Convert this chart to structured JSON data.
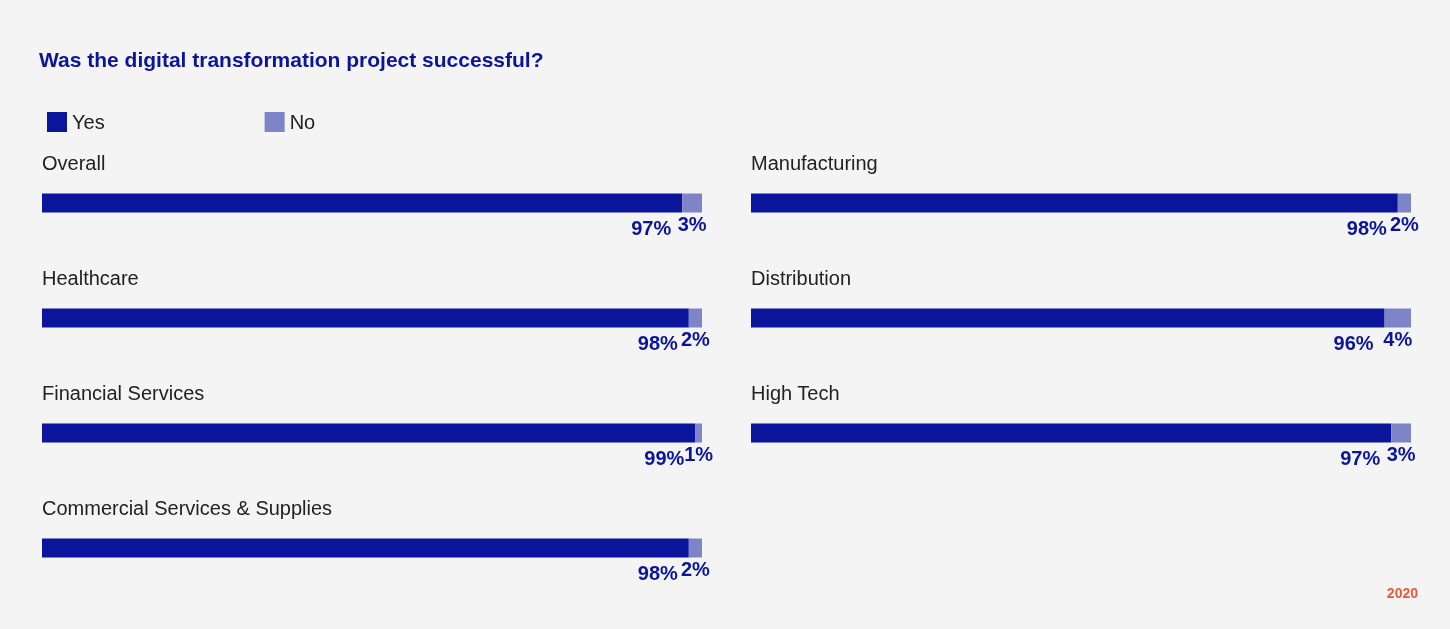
{
  "chart_data": [
    {
      "type": "bar",
      "orientation": "horizontal",
      "stacked": true,
      "title": "Was the digital transformation project successful?",
      "categories": [
        "Overall",
        "Healthcare",
        "Financial Services",
        "Commercial Services & Supplies"
      ],
      "series": [
        {
          "name": "Yes",
          "color": "#0a159c",
          "values": [
            97,
            98,
            99,
            98
          ],
          "value_labels": [
            "97%",
            "98%",
            "99%",
            "98%"
          ]
        },
        {
          "name": "No",
          "color": "#7e84c8",
          "values": [
            3,
            2,
            1,
            2
          ],
          "value_labels": [
            "3%",
            "2%",
            "1%",
            "2%"
          ]
        }
      ],
      "legend": "top left"
    },
    {
      "type": "bar",
      "orientation": "horizontal",
      "stacked": true,
      "categories": [
        "Manufacturing",
        "Distribution",
        "High Tech"
      ],
      "series": [
        {
          "color": "#0a159c",
          "values": [
            98,
            96,
            97
          ],
          "value_labels": [
            "98%",
            "96%",
            "97%"
          ]
        },
        {
          "color": "#7e84c8",
          "values": [
            2,
            4,
            3
          ],
          "value_labels": [
            "2%",
            "4%",
            "3%"
          ]
        }
      ],
      "annotations": [
        "2020"
      ]
    }
  ]
}
